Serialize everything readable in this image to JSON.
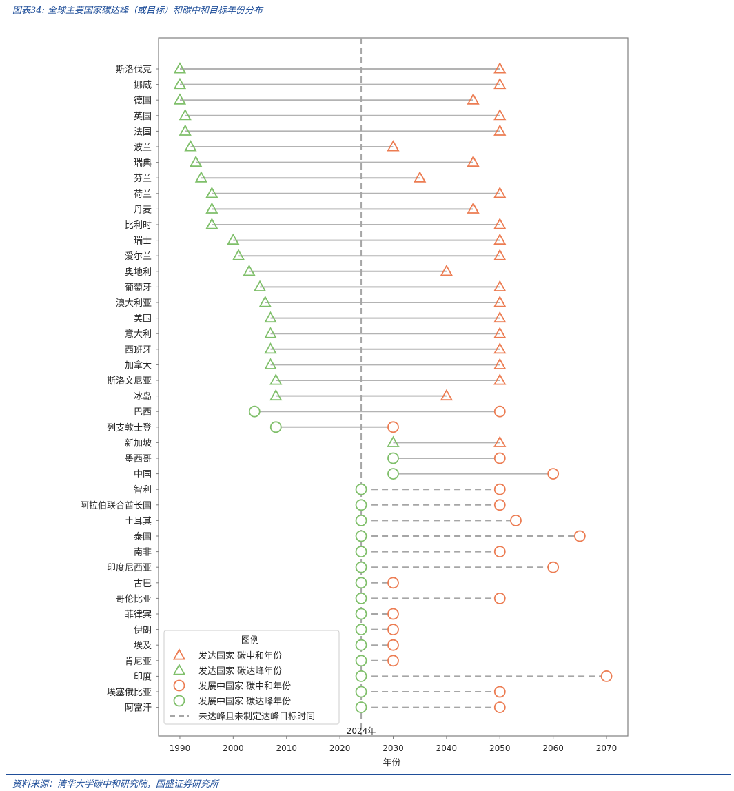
{
  "header": {
    "title": "图表34: 全球主要国家碳达峰（或目标）和碳中和目标年份分布"
  },
  "footer": {
    "source": "资料来源：清华大学碳中和研究院，国盛证券研究所"
  },
  "colors": {
    "peak": "#7fbf6a",
    "neutral": "#ec7c52",
    "line": "#b3b3b3",
    "dashed": "#a6a6a6",
    "axis": "#7f7f7f"
  },
  "chart_data": {
    "type": "dumbbell",
    "xlabel": "年份",
    "xlim": [
      1986,
      2074
    ],
    "xticks": [
      1990,
      2000,
      2010,
      2020,
      2030,
      2040,
      2050,
      2060,
      2070
    ],
    "reference_line": {
      "x": 2024,
      "label": "2024年"
    },
    "legend": {
      "title": "图例",
      "position": "bottom-left",
      "entries": [
        {
          "label": "发达国家  碳中和年份",
          "marker": "triangle",
          "color": "neutral"
        },
        {
          "label": "发达国家  碳达峰年份",
          "marker": "triangle",
          "color": "peak"
        },
        {
          "label": "发展中国家  碳中和年份",
          "marker": "circle",
          "color": "neutral"
        },
        {
          "label": "发展中国家  碳达峰年份",
          "marker": "circle",
          "color": "peak"
        },
        {
          "label": "未达峰且未制定达峰目标时间",
          "marker": "dash",
          "color": "dashed"
        }
      ]
    },
    "rows": [
      {
        "country": "斯洛伐克",
        "group": "developed",
        "peak": 1990,
        "neutral": 2050,
        "dashed": false
      },
      {
        "country": "挪威",
        "group": "developed",
        "peak": 1990,
        "neutral": 2050,
        "dashed": false
      },
      {
        "country": "德国",
        "group": "developed",
        "peak": 1990,
        "neutral": 2045,
        "dashed": false
      },
      {
        "country": "英国",
        "group": "developed",
        "peak": 1991,
        "neutral": 2050,
        "dashed": false
      },
      {
        "country": "法国",
        "group": "developed",
        "peak": 1991,
        "neutral": 2050,
        "dashed": false
      },
      {
        "country": "波兰",
        "group": "developed",
        "peak": 1992,
        "neutral": 2030,
        "dashed": false
      },
      {
        "country": "瑞典",
        "group": "developed",
        "peak": 1993,
        "neutral": 2045,
        "dashed": false
      },
      {
        "country": "芬兰",
        "group": "developed",
        "peak": 1994,
        "neutral": 2035,
        "dashed": false
      },
      {
        "country": "荷兰",
        "group": "developed",
        "peak": 1996,
        "neutral": 2050,
        "dashed": false
      },
      {
        "country": "丹麦",
        "group": "developed",
        "peak": 1996,
        "neutral": 2045,
        "dashed": false
      },
      {
        "country": "比利时",
        "group": "developed",
        "peak": 1996,
        "neutral": 2050,
        "dashed": false
      },
      {
        "country": "瑞士",
        "group": "developed",
        "peak": 2000,
        "neutral": 2050,
        "dashed": false
      },
      {
        "country": "爱尔兰",
        "group": "developed",
        "peak": 2001,
        "neutral": 2050,
        "dashed": false
      },
      {
        "country": "奥地利",
        "group": "developed",
        "peak": 2003,
        "neutral": 2040,
        "dashed": false
      },
      {
        "country": "葡萄牙",
        "group": "developed",
        "peak": 2005,
        "neutral": 2050,
        "dashed": false
      },
      {
        "country": "澳大利亚",
        "group": "developed",
        "peak": 2006,
        "neutral": 2050,
        "dashed": false
      },
      {
        "country": "美国",
        "group": "developed",
        "peak": 2007,
        "neutral": 2050,
        "dashed": false
      },
      {
        "country": "意大利",
        "group": "developed",
        "peak": 2007,
        "neutral": 2050,
        "dashed": false
      },
      {
        "country": "西班牙",
        "group": "developed",
        "peak": 2007,
        "neutral": 2050,
        "dashed": false
      },
      {
        "country": "加拿大",
        "group": "developed",
        "peak": 2007,
        "neutral": 2050,
        "dashed": false
      },
      {
        "country": "斯洛文尼亚",
        "group": "developed",
        "peak": 2008,
        "neutral": 2050,
        "dashed": false
      },
      {
        "country": "冰岛",
        "group": "developed",
        "peak": 2008,
        "neutral": 2040,
        "dashed": false
      },
      {
        "country": "巴西",
        "group": "developing",
        "peak": 2004,
        "neutral": 2050,
        "dashed": false
      },
      {
        "country": "列支敦士登",
        "group": "developing",
        "peak": 2008,
        "neutral": 2030,
        "dashed": false
      },
      {
        "country": "新加坡",
        "group": "developed",
        "peak": 2030,
        "neutral": 2050,
        "dashed": false
      },
      {
        "country": "墨西哥",
        "group": "developing",
        "peak": 2030,
        "neutral": 2050,
        "dashed": false
      },
      {
        "country": "中国",
        "group": "developing",
        "peak": 2030,
        "neutral": 2060,
        "dashed": false
      },
      {
        "country": "智利",
        "group": "developing",
        "peak": 2024,
        "neutral": 2050,
        "dashed": true
      },
      {
        "country": "阿拉伯联合酋长国",
        "group": "developing",
        "peak": 2024,
        "neutral": 2050,
        "dashed": true
      },
      {
        "country": "土耳其",
        "group": "developing",
        "peak": 2024,
        "neutral": 2053,
        "dashed": true
      },
      {
        "country": "泰国",
        "group": "developing",
        "peak": 2024,
        "neutral": 2065,
        "dashed": true
      },
      {
        "country": "南非",
        "group": "developing",
        "peak": 2024,
        "neutral": 2050,
        "dashed": true
      },
      {
        "country": "印度尼西亚",
        "group": "developing",
        "peak": 2024,
        "neutral": 2060,
        "dashed": true
      },
      {
        "country": "古巴",
        "group": "developing",
        "peak": 2024,
        "neutral": 2030,
        "dashed": true
      },
      {
        "country": "哥伦比亚",
        "group": "developing",
        "peak": 2024,
        "neutral": 2050,
        "dashed": true
      },
      {
        "country": "菲律宾",
        "group": "developing",
        "peak": 2024,
        "neutral": 2030,
        "dashed": true
      },
      {
        "country": "伊朗",
        "group": "developing",
        "peak": 2024,
        "neutral": 2030,
        "dashed": true
      },
      {
        "country": "埃及",
        "group": "developing",
        "peak": 2024,
        "neutral": 2030,
        "dashed": true
      },
      {
        "country": "肯尼亚",
        "group": "developing",
        "peak": 2024,
        "neutral": 2030,
        "dashed": true
      },
      {
        "country": "印度",
        "group": "developing",
        "peak": 2024,
        "neutral": 2070,
        "dashed": true
      },
      {
        "country": "埃塞俄比亚",
        "group": "developing",
        "peak": 2024,
        "neutral": 2050,
        "dashed": true
      },
      {
        "country": "阿富汗",
        "group": "developing",
        "peak": 2024,
        "neutral": 2050,
        "dashed": true
      }
    ]
  }
}
